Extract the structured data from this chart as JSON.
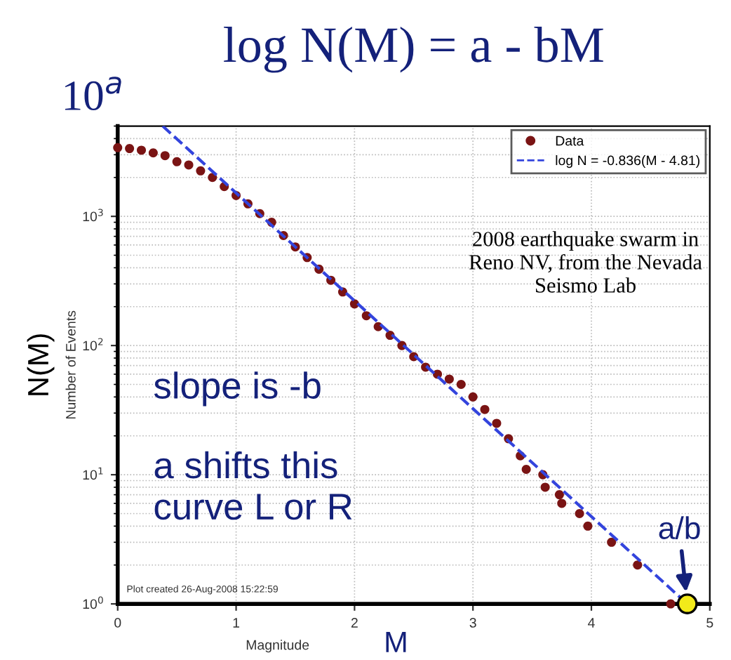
{
  "chart_data": {
    "type": "scatter",
    "title": "log N(M) = a - bM",
    "xlabel": "Magnitude",
    "ylabel": "Number of Events",
    "series": [
      {
        "name": "Data",
        "marker": "circle",
        "color": "#7a1414",
        "x": [
          0,
          0.1,
          0.2,
          0.3,
          0.4,
          0.5,
          0.6,
          0.7,
          0.8,
          0.9,
          1.0,
          1.1,
          1.2,
          1.3,
          1.4,
          1.5,
          1.6,
          1.7,
          1.8,
          1.9,
          2.0,
          2.1,
          2.2,
          2.3,
          2.4,
          2.5,
          2.6,
          2.7,
          2.8,
          2.9,
          3.0,
          3.1,
          3.2,
          3.3,
          3.4,
          3.45,
          3.59,
          3.61,
          3.73,
          3.75,
          3.9,
          3.97,
          4.17,
          4.39,
          4.67
        ],
        "values": [
          3400,
          3350,
          3250,
          3100,
          2950,
          2650,
          2500,
          2250,
          2000,
          1700,
          1450,
          1250,
          1050,
          900,
          710,
          580,
          480,
          390,
          320,
          260,
          210,
          170,
          140,
          120,
          100,
          82,
          68,
          60,
          55,
          50,
          40,
          32,
          25,
          19,
          14,
          11,
          10,
          8,
          7,
          6,
          5,
          4,
          3,
          2,
          1
        ]
      },
      {
        "name": "log N = -0.836(M - 4.81)",
        "type": "line",
        "color": "#3344dd",
        "line_style": "dashed",
        "x": [
          0.38,
          4.81
        ],
        "values": [
          5000,
          1
        ]
      },
      {
        "type": "scatter",
        "marker": "circle",
        "color": "#f2ea1a",
        "x": [
          4.81
        ],
        "values": [
          1
        ]
      }
    ],
    "log": "y",
    "xlim": [
      0,
      5
    ],
    "ylim": [
      1,
      5000
    ],
    "xticks": [
      0,
      1,
      2,
      3,
      4,
      5
    ],
    "yticks": [
      {
        "value": 1,
        "label": "10$^{0}$"
      },
      {
        "value": 10,
        "label": "10$^{1}$"
      },
      {
        "value": 100,
        "label": "10$^{2}$"
      },
      {
        "value": 1000,
        "label": "10$^{3}$"
      }
    ],
    "grid": true,
    "legend": "top right",
    "annotations": [
      "10$^{a}$",
      "N(M)",
      "M",
      "2008 earthquake swarm in\nReno NV, from the Nevada\nSeismo Lab",
      "slope is -b",
      "a shifts this\ncurve L or R",
      "Plot created 26-Aug-2008 15:22:59",
      {
        "text": "a/b",
        "x": 4.81,
        "y": 1
      }
    ]
  }
}
